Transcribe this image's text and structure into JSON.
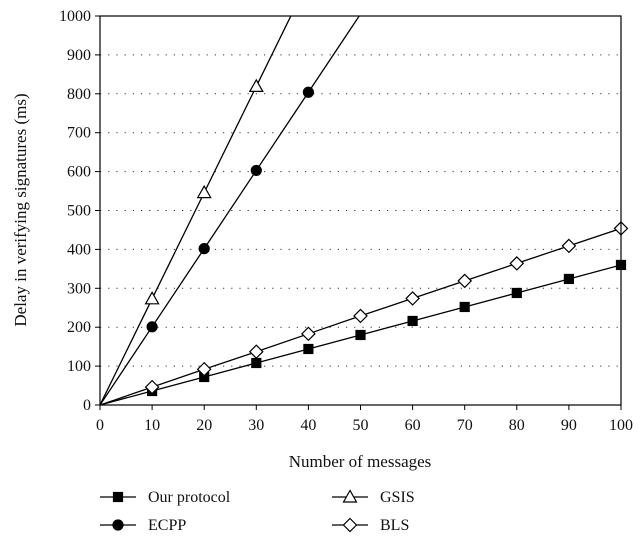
{
  "chart_data": {
    "type": "line",
    "title": "",
    "xlabel": "Number of messages",
    "ylabel": "Delay in verifying signatures (ms)",
    "xlim": [
      0,
      100
    ],
    "ylim": [
      0,
      1000
    ],
    "x_ticks": [
      0,
      10,
      20,
      30,
      40,
      50,
      60,
      70,
      80,
      90,
      100
    ],
    "y_ticks": [
      0,
      100,
      200,
      300,
      400,
      500,
      600,
      700,
      800,
      900,
      1000
    ],
    "grid": "horizontal-dotted",
    "legend_position": "bottom",
    "series": [
      {
        "name": "Our protocol",
        "marker": "square-filled",
        "color": "#000000",
        "x": [
          0,
          10,
          20,
          30,
          40,
          50,
          60,
          70,
          80,
          90,
          100
        ],
        "y": [
          0,
          36,
          72,
          108,
          144,
          180,
          216,
          252,
          288,
          324,
          360
        ]
      },
      {
        "name": "ECPP",
        "marker": "circle-filled",
        "color": "#000000",
        "x": [
          0,
          10,
          20,
          30,
          40,
          50
        ],
        "y": [
          0,
          201,
          402,
          603,
          804,
          1005
        ]
      },
      {
        "name": "GSIS",
        "marker": "triangle-open",
        "color": "#000000",
        "x": [
          0,
          10,
          20,
          30,
          40
        ],
        "y": [
          0,
          273,
          546,
          819,
          1092
        ]
      },
      {
        "name": "BLS",
        "marker": "diamond-open",
        "color": "#000000",
        "x": [
          0,
          10,
          20,
          30,
          40,
          50,
          60,
          70,
          80,
          90,
          100
        ],
        "y": [
          0,
          46,
          92,
          137,
          183,
          229,
          274,
          319,
          364,
          409,
          454
        ]
      }
    ]
  }
}
